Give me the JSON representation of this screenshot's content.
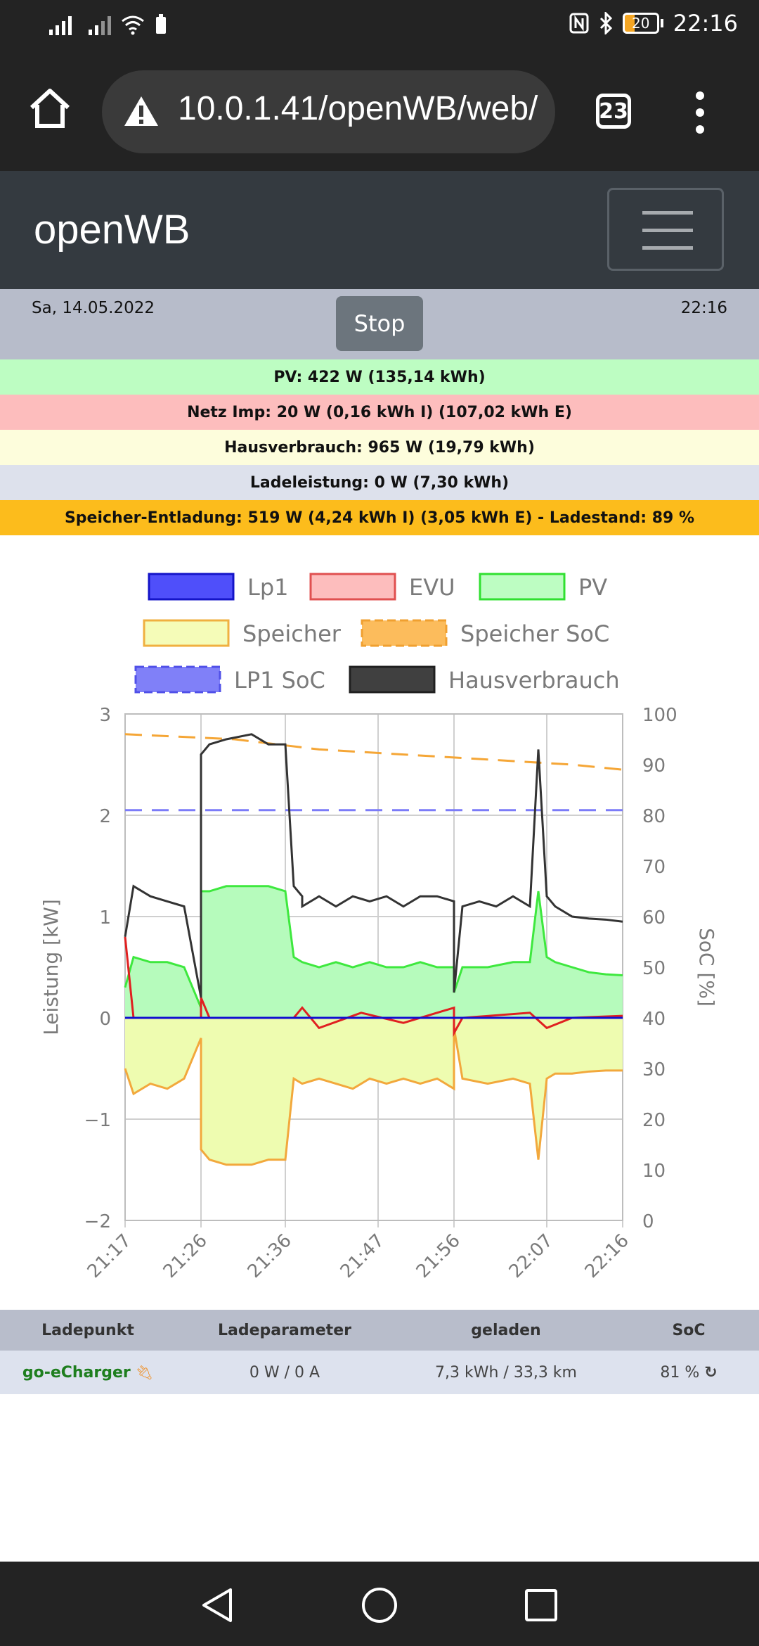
{
  "status_bar": {
    "battery": "20",
    "time": "22:16"
  },
  "browser": {
    "url": "10.0.1.41/openWB/web/",
    "tab_count": "23"
  },
  "navbar": {
    "brand": "openWB"
  },
  "datebar": {
    "date": "Sa, 14.05.2022",
    "stop_label": "Stop",
    "time": "22:16"
  },
  "info_rows": [
    {
      "text": "PV: 422 W (135,14 kWh)",
      "color": "#bdfdc2"
    },
    {
      "text": "Netz Imp: 20 W (0,16 kWh I) (107,02 kWh E)",
      "color": "#fdbdbd"
    },
    {
      "text": "Hausverbrauch: 965 W (19,79 kWh)",
      "color": "#fdfddc"
    },
    {
      "text": "Ladeleistung: 0 W (7,30 kWh)",
      "color": "#dde1ec"
    },
    {
      "text": "Speicher-Entladung: 519 W (4,24 kWh I) (3,05 kWh E) - Ladestand: 89 %",
      "color": "#fcbc1c"
    }
  ],
  "chart_data": {
    "type": "line",
    "legend": [
      "Lp1",
      "EVU",
      "PV",
      "Speicher",
      "Speicher SoC",
      "LP1 SoC",
      "Hausverbrauch"
    ],
    "ylabel": "Leistung [kW]",
    "y2label": "SoC [%]",
    "ylim": [
      -2,
      3
    ],
    "y2lim": [
      0,
      100
    ],
    "yticks": [
      "3",
      "2",
      "1",
      "0",
      "−1",
      "−2"
    ],
    "y2ticks": [
      "100",
      "90",
      "80",
      "70",
      "60",
      "50",
      "40",
      "30",
      "20",
      "10",
      "0"
    ],
    "xticks": [
      "21:17",
      "21:26",
      "21:36",
      "21:47",
      "21:56",
      "22:07",
      "22:16"
    ],
    "colors": {
      "Lp1": "#0000ff",
      "EVU": "#ff0000",
      "PV": "#00e000",
      "Speicher": "#f0f8a0",
      "Speicher SoC": "#fca428",
      "LP1 SoC": "#7b7bf8",
      "Hausverbrauch": "#404040"
    },
    "series": [
      {
        "name": "Hausverbrauch",
        "x": [
          "21:17",
          "21:18",
          "21:20",
          "21:22",
          "21:24",
          "21:26",
          "21:26",
          "21:27",
          "21:29",
          "21:32",
          "21:34",
          "21:36",
          "21:37",
          "21:38",
          "21:38",
          "21:40",
          "21:42",
          "21:44",
          "21:46",
          "21:48",
          "21:50",
          "21:52",
          "21:54",
          "21:56",
          "21:56",
          "21:57",
          "21:59",
          "22:01",
          "22:03",
          "22:05",
          "22:06",
          "22:07",
          "22:08",
          "22:10",
          "22:12",
          "22:14",
          "22:16"
        ],
        "values": [
          0.8,
          1.3,
          1.2,
          1.15,
          1.1,
          0.2,
          2.6,
          2.7,
          2.75,
          2.8,
          2.7,
          2.7,
          1.3,
          1.2,
          1.1,
          1.2,
          1.1,
          1.2,
          1.15,
          1.2,
          1.1,
          1.2,
          1.2,
          1.15,
          0.25,
          1.1,
          1.15,
          1.1,
          1.2,
          1.1,
          2.65,
          1.2,
          1.1,
          1.0,
          0.98,
          0.97,
          0.95
        ]
      },
      {
        "name": "PV",
        "x": [
          "21:17",
          "21:18",
          "21:20",
          "21:22",
          "21:24",
          "21:26",
          "21:26",
          "21:27",
          "21:29",
          "21:32",
          "21:34",
          "21:36",
          "21:37",
          "21:38",
          "21:40",
          "21:42",
          "21:44",
          "21:46",
          "21:48",
          "21:50",
          "21:52",
          "21:54",
          "21:56",
          "21:56",
          "21:57",
          "22:00",
          "22:03",
          "22:05",
          "22:06",
          "22:07",
          "22:08",
          "22:10",
          "22:12",
          "22:14",
          "22:16"
        ],
        "values": [
          0.3,
          0.6,
          0.55,
          0.55,
          0.5,
          0.1,
          1.25,
          1.25,
          1.3,
          1.3,
          1.3,
          1.25,
          0.6,
          0.55,
          0.5,
          0.55,
          0.5,
          0.55,
          0.5,
          0.5,
          0.55,
          0.5,
          0.5,
          0.25,
          0.5,
          0.5,
          0.55,
          0.55,
          1.25,
          0.6,
          0.55,
          0.5,
          0.45,
          0.43,
          0.42
        ]
      },
      {
        "name": "Speicher",
        "x": [
          "21:17",
          "21:18",
          "21:20",
          "21:22",
          "21:24",
          "21:26",
          "21:26",
          "21:27",
          "21:29",
          "21:32",
          "21:34",
          "21:36",
          "21:37",
          "21:38",
          "21:40",
          "21:42",
          "21:44",
          "21:46",
          "21:48",
          "21:50",
          "21:52",
          "21:54",
          "21:56",
          "21:56",
          "21:57",
          "22:00",
          "22:03",
          "22:05",
          "22:06",
          "22:07",
          "22:08",
          "22:10",
          "22:12",
          "22:14",
          "22:16"
        ],
        "values": [
          -0.5,
          -0.75,
          -0.65,
          -0.7,
          -0.6,
          -0.2,
          -1.3,
          -1.4,
          -1.45,
          -1.45,
          -1.4,
          -1.4,
          -0.6,
          -0.65,
          -0.6,
          -0.65,
          -0.7,
          -0.6,
          -0.65,
          -0.6,
          -0.65,
          -0.6,
          -0.7,
          -0.1,
          -0.6,
          -0.65,
          -0.6,
          -0.65,
          -1.4,
          -0.6,
          -0.55,
          -0.55,
          -0.53,
          -0.52,
          -0.52
        ]
      },
      {
        "name": "EVU",
        "x": [
          "21:17",
          "21:18",
          "21:26",
          "21:26",
          "21:27",
          "21:37",
          "21:38",
          "21:40",
          "21:45",
          "21:50",
          "21:56",
          "21:56",
          "21:57",
          "22:05",
          "22:07",
          "22:10",
          "22:16"
        ],
        "values": [
          0.8,
          0.0,
          0.0,
          0.2,
          0.0,
          0.0,
          0.1,
          -0.1,
          0.05,
          -0.05,
          0.1,
          -0.15,
          0.0,
          0.05,
          -0.1,
          0.0,
          0.02
        ]
      },
      {
        "name": "Lp1",
        "x": [
          "21:17",
          "22:16"
        ],
        "values": [
          0.0,
          0.0
        ]
      },
      {
        "name": "Speicher SoC",
        "x": [
          "21:17",
          "21:30",
          "21:40",
          "21:50",
          "22:00",
          "22:10",
          "22:16"
        ],
        "values": [
          96,
          95,
          93,
          92,
          91,
          90,
          89
        ]
      },
      {
        "name": "LP1 SoC",
        "x": [
          "21:17",
          "22:16"
        ],
        "values": [
          81,
          81
        ]
      }
    ]
  },
  "table": {
    "headers": [
      "Ladepunkt",
      "Ladeparameter",
      "geladen",
      "SoC"
    ],
    "row": {
      "ladepunkt": "go-eCharger",
      "ladeparameter": "0 W / 0 A",
      "geladen": "7,3 kWh / 33,3 km",
      "soc": "81 %"
    }
  }
}
